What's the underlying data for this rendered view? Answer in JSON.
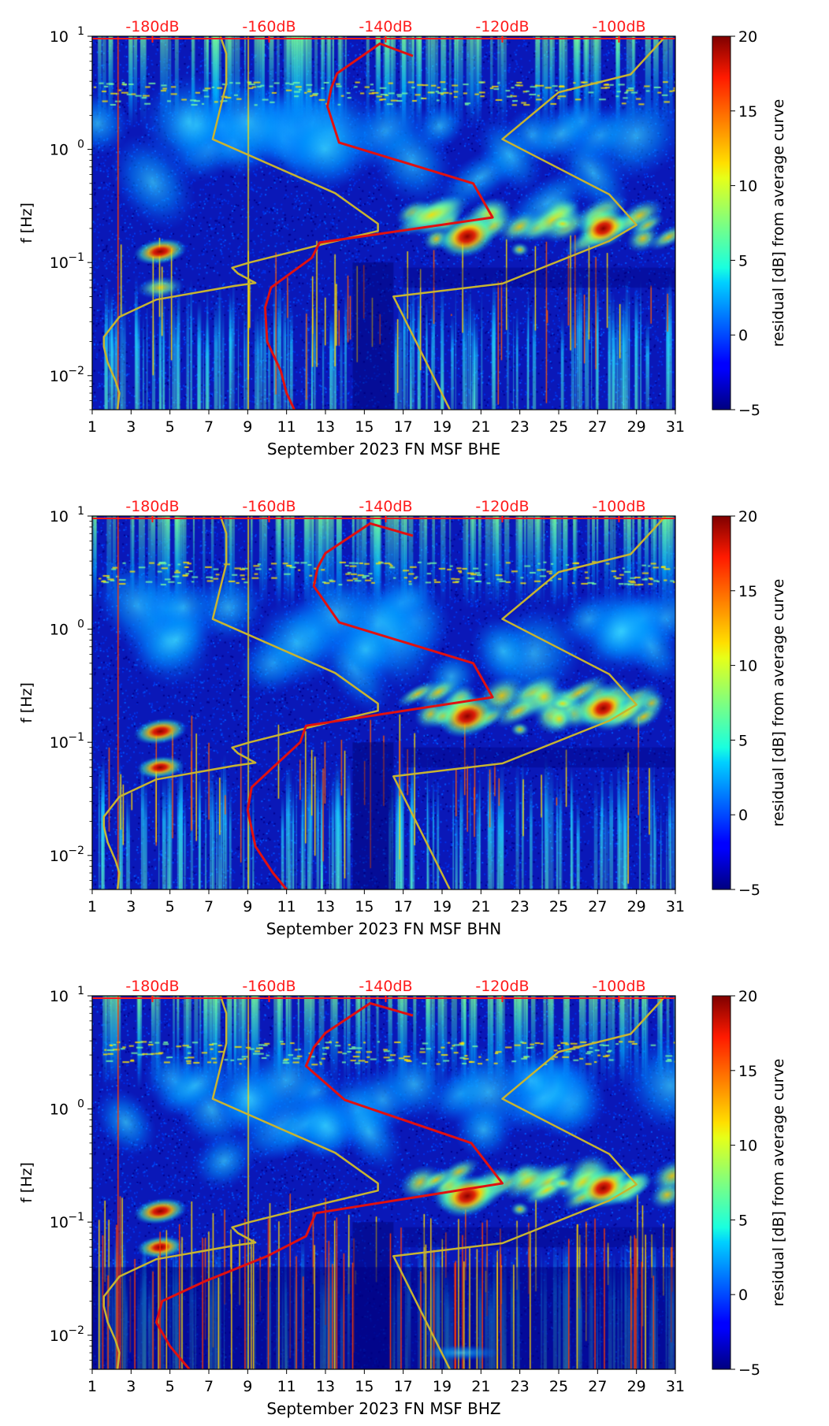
{
  "chart_data": [
    {
      "type": "heatmap",
      "xlabel": "September 2023 FN MSF  BHE",
      "ylabel": "f [Hz]",
      "xlim": [
        1,
        31
      ],
      "ylim": [
        0.005,
        10
      ],
      "yscale": "log",
      "x_ticks": [
        "1",
        "3",
        "5",
        "7",
        "9",
        "11",
        "13",
        "15",
        "17",
        "19",
        "21",
        "23",
        "25",
        "27",
        "29",
        "31"
      ],
      "y_ticks": [
        {
          "label": "10",
          "exp": "−2",
          "value": 0.01
        },
        {
          "label": "10",
          "exp": "−1",
          "value": 0.1
        },
        {
          "label": "10",
          "exp": "0",
          "value": 1
        },
        {
          "label": "10",
          "exp": "1",
          "value": 10
        }
      ],
      "top_axis": {
        "color": "#ff1a1a",
        "ticks": [
          {
            "label": "-180dB",
            "day": 4.1
          },
          {
            "label": "-160dB",
            "day": 10.1
          },
          {
            "label": "-140dB",
            "day": 16.1
          },
          {
            "label": "-120dB",
            "day": 22.1
          },
          {
            "label": "-100dB",
            "day": 28.1
          }
        ]
      },
      "colorbar": {
        "label": "residual [dB] from average curve",
        "range": [
          -5,
          20
        ],
        "ticks": [
          "−5",
          "0",
          "5",
          "10",
          "15",
          "20"
        ]
      },
      "series": [
        {
          "color": "#c8b430",
          "x": [
            2.3,
            2.4,
            2.2,
            1.8,
            1.6,
            1.6,
            2.4,
            4.3,
            8.3,
            9.4,
            8.5,
            8.2,
            9.1,
            13.2,
            15.7,
            15.7,
            13.5,
            7.2,
            7.9,
            7.9,
            7.6
          ],
          "y": [
            0.005,
            0.007,
            0.009,
            0.013,
            0.018,
            0.022,
            0.033,
            0.047,
            0.062,
            0.066,
            0.08,
            0.09,
            0.1,
            0.15,
            0.19,
            0.22,
            0.41,
            1.23,
            3.8,
            7,
            10
          ]
        },
        {
          "color": "#c8b430",
          "x": [
            19.4,
            16.5,
            22.1,
            27.6,
            29.0,
            27.6,
            22.1,
            25.0,
            28.7,
            30.5
          ],
          "y": [
            0.005,
            0.05,
            0.065,
            0.155,
            0.215,
            0.4,
            1.23,
            3.2,
            4.6,
            10
          ]
        },
        {
          "color": "#e01010",
          "x": [
            11.4,
            11.0,
            10.7,
            10.0,
            9.9,
            10.2,
            12.3,
            12.7,
            21.6,
            20.6,
            13.7,
            13.1,
            13.3,
            13.6,
            15.8,
            17.5
          ],
          "y": [
            0.005,
            0.007,
            0.011,
            0.02,
            0.04,
            0.06,
            0.11,
            0.15,
            0.25,
            0.5,
            1.15,
            2.4,
            3.5,
            4.7,
            8.6,
            6.7
          ]
        }
      ]
    },
    {
      "type": "heatmap",
      "xlabel": "September 2023 FN MSF  BHN",
      "ylabel": "f [Hz]",
      "xlim": [
        1,
        31
      ],
      "ylim": [
        0.005,
        10
      ],
      "yscale": "log",
      "x_ticks": [
        "1",
        "3",
        "5",
        "7",
        "9",
        "11",
        "13",
        "15",
        "17",
        "19",
        "21",
        "23",
        "25",
        "27",
        "29",
        "31"
      ],
      "y_ticks": [
        {
          "label": "10",
          "exp": "−2",
          "value": 0.01
        },
        {
          "label": "10",
          "exp": "−1",
          "value": 0.1
        },
        {
          "label": "10",
          "exp": "0",
          "value": 1
        },
        {
          "label": "10",
          "exp": "1",
          "value": 10
        }
      ],
      "top_axis": {
        "color": "#ff1a1a",
        "ticks": [
          {
            "label": "-180dB",
            "day": 4.1
          },
          {
            "label": "-160dB",
            "day": 10.1
          },
          {
            "label": "-140dB",
            "day": 16.1
          },
          {
            "label": "-120dB",
            "day": 22.1
          },
          {
            "label": "-100dB",
            "day": 28.1
          }
        ]
      },
      "colorbar": {
        "label": "residual [dB] from average curve",
        "range": [
          -5,
          20
        ],
        "ticks": [
          "−5",
          "0",
          "5",
          "10",
          "15",
          "20"
        ]
      },
      "series": [
        {
          "color": "#c8b430",
          "x": [
            2.3,
            2.4,
            2.2,
            1.8,
            1.6,
            1.6,
            2.4,
            4.3,
            8.3,
            9.4,
            8.5,
            8.2,
            9.1,
            13.2,
            15.7,
            15.7,
            13.5,
            7.2,
            7.9,
            7.9,
            7.6
          ],
          "y": [
            0.005,
            0.007,
            0.009,
            0.013,
            0.018,
            0.022,
            0.033,
            0.047,
            0.062,
            0.066,
            0.08,
            0.09,
            0.1,
            0.15,
            0.19,
            0.22,
            0.41,
            1.23,
            3.8,
            7,
            10
          ]
        },
        {
          "color": "#c8b430",
          "x": [
            19.4,
            16.5,
            22.1,
            27.6,
            29.0,
            27.6,
            22.1,
            25.0,
            28.7,
            30.5
          ],
          "y": [
            0.005,
            0.05,
            0.065,
            0.155,
            0.215,
            0.4,
            1.23,
            3.2,
            4.6,
            10
          ]
        },
        {
          "color": "#e01010",
          "x": [
            11.0,
            10.3,
            9.4,
            9.0,
            9.2,
            10.3,
            11.7,
            12.0,
            21.6,
            20.6,
            13.7,
            12.4,
            12.6,
            13.0,
            15.3,
            17.5
          ],
          "y": [
            0.005,
            0.007,
            0.012,
            0.025,
            0.04,
            0.06,
            0.1,
            0.14,
            0.25,
            0.5,
            1.15,
            2.4,
            3.5,
            4.7,
            8.6,
            6.7
          ]
        }
      ]
    },
    {
      "type": "heatmap",
      "xlabel": "September 2023 FN MSF  BHZ",
      "ylabel": "f [Hz]",
      "xlim": [
        1,
        31
      ],
      "ylim": [
        0.005,
        10
      ],
      "yscale": "log",
      "x_ticks": [
        "1",
        "3",
        "5",
        "7",
        "9",
        "11",
        "13",
        "15",
        "17",
        "19",
        "21",
        "23",
        "25",
        "27",
        "29",
        "31"
      ],
      "y_ticks": [
        {
          "label": "10",
          "exp": "−2",
          "value": 0.01
        },
        {
          "label": "10",
          "exp": "−1",
          "value": 0.1
        },
        {
          "label": "10",
          "exp": "0",
          "value": 1
        },
        {
          "label": "10",
          "exp": "1",
          "value": 10
        }
      ],
      "top_axis": {
        "color": "#ff1a1a",
        "ticks": [
          {
            "label": "-180dB",
            "day": 4.1
          },
          {
            "label": "-160dB",
            "day": 10.1
          },
          {
            "label": "-140dB",
            "day": 16.1
          },
          {
            "label": "-120dB",
            "day": 22.1
          },
          {
            "label": "-100dB",
            "day": 28.1
          }
        ]
      },
      "colorbar": {
        "label": "residual [dB] from average curve",
        "range": [
          -5,
          20
        ],
        "ticks": [
          "−5",
          "0",
          "5",
          "10",
          "15",
          "20"
        ]
      },
      "series": [
        {
          "color": "#c8b430",
          "x": [
            2.3,
            2.4,
            2.2,
            1.8,
            1.6,
            1.6,
            2.4,
            4.3,
            8.3,
            9.4,
            8.5,
            8.2,
            9.1,
            13.2,
            15.7,
            15.7,
            13.5,
            7.2,
            7.9,
            7.9,
            7.6
          ],
          "y": [
            0.005,
            0.007,
            0.009,
            0.013,
            0.018,
            0.022,
            0.033,
            0.047,
            0.062,
            0.066,
            0.08,
            0.09,
            0.1,
            0.15,
            0.19,
            0.22,
            0.41,
            1.23,
            3.8,
            7,
            10
          ]
        },
        {
          "color": "#c8b430",
          "x": [
            19.4,
            16.5,
            22.1,
            27.6,
            29.0,
            27.6,
            22.1,
            25.0,
            28.7,
            30.5
          ],
          "y": [
            0.005,
            0.05,
            0.065,
            0.155,
            0.215,
            0.4,
            1.23,
            3.2,
            4.6,
            10
          ]
        },
        {
          "color": "#e01010",
          "x": [
            6.0,
            5.0,
            4.3,
            4.6,
            6.8,
            10.0,
            12.0,
            12.5,
            22.1,
            20.5,
            14.0,
            12.0,
            12.4,
            13.0,
            15.3,
            17.5
          ],
          "y": [
            0.005,
            0.008,
            0.013,
            0.02,
            0.03,
            0.05,
            0.075,
            0.12,
            0.22,
            0.5,
            1.2,
            2.4,
            3.5,
            4.7,
            8.6,
            6.7
          ]
        }
      ]
    }
  ]
}
